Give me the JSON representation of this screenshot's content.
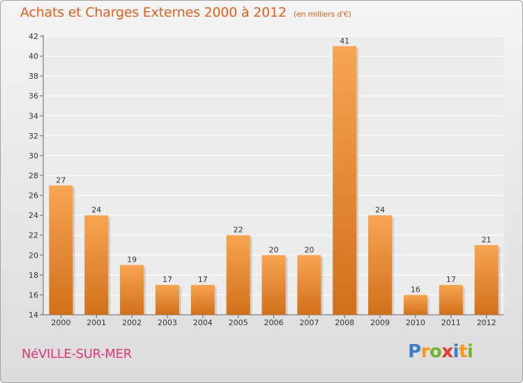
{
  "header": {
    "title": "Achats et Charges Externes 2000 à 2012",
    "unit": "(en milliers d'€)"
  },
  "footer": {
    "town": "NéVILLE-SUR-MER",
    "logo": [
      "P",
      "r",
      "o",
      "x",
      "i",
      "t",
      "i"
    ]
  },
  "colors": {
    "bar_top": "#f7a552",
    "bar_bottom": "#d2701a",
    "title": "#e35f1c",
    "town": "#e0367a"
  },
  "chart_data": {
    "type": "bar",
    "title": "Achats et Charges Externes 2000 à 2012",
    "unit": "(en milliers d'€)",
    "categories": [
      "2000",
      "2001",
      "2002",
      "2003",
      "2004",
      "2005",
      "2006",
      "2007",
      "2008",
      "2009",
      "2010",
      "2011",
      "2012"
    ],
    "values": [
      27,
      24,
      19,
      17,
      17,
      22,
      20,
      20,
      41,
      24,
      16,
      17,
      21
    ],
    "ylim": [
      14,
      42
    ],
    "yticks": [
      14,
      16,
      18,
      20,
      22,
      24,
      26,
      28,
      30,
      32,
      34,
      36,
      38,
      40,
      42
    ],
    "grid": true,
    "data_labels": true
  }
}
